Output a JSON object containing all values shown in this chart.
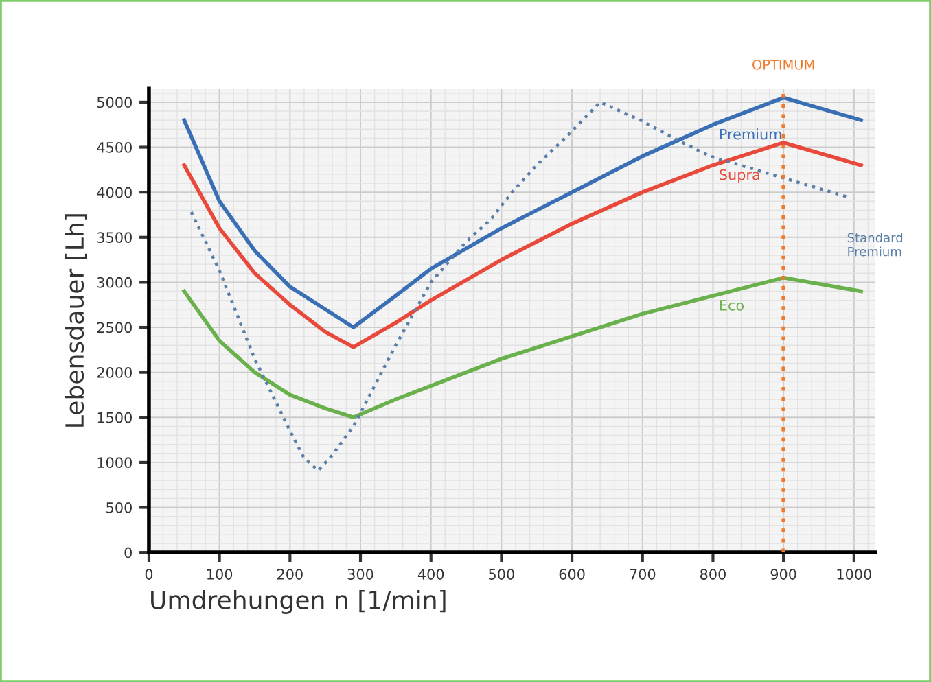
{
  "chart_data": {
    "type": "line",
    "xlabel": "Umdrehungen n [1/min]",
    "ylabel": "Lebensdauer [Lh]",
    "xlim": [
      0,
      1030
    ],
    "ylim": [
      0,
      5150
    ],
    "xticks": [
      0,
      100,
      200,
      300,
      400,
      500,
      600,
      700,
      800,
      900,
      1000
    ],
    "yticks": [
      0,
      500,
      1000,
      1500,
      2000,
      2500,
      3000,
      3500,
      4000,
      4500,
      5000
    ],
    "grid": true,
    "line_style": "solid",
    "series": [
      {
        "name": "Premium",
        "color": "#3a6fb5",
        "x": [
          50,
          100,
          150,
          200,
          250,
          290,
          350,
          400,
          500,
          600,
          700,
          800,
          900,
          1010
        ],
        "values": [
          4800,
          3900,
          3350,
          2950,
          2700,
          2500,
          2850,
          3150,
          3600,
          4000,
          4400,
          4750,
          5050,
          4800
        ]
      },
      {
        "name": "Supra",
        "color": "#e8493a",
        "x": [
          50,
          100,
          150,
          200,
          250,
          290,
          350,
          400,
          500,
          600,
          700,
          800,
          900,
          1010
        ],
        "values": [
          4300,
          3600,
          3100,
          2750,
          2450,
          2280,
          2550,
          2800,
          3250,
          3650,
          4000,
          4300,
          4550,
          4300
        ]
      },
      {
        "name": "Eco",
        "color": "#6ab04c",
        "x": [
          50,
          100,
          150,
          200,
          250,
          290,
          350,
          400,
          500,
          600,
          700,
          800,
          900,
          1010
        ],
        "values": [
          2900,
          2350,
          2000,
          1750,
          1600,
          1500,
          1700,
          1850,
          2150,
          2400,
          2650,
          2850,
          3050,
          2900
        ]
      },
      {
        "name": "Standard\nPremium",
        "color": "#5a7fa8",
        "line_style": "dotted",
        "x": [
          60,
          100,
          150,
          200,
          220,
          240,
          260,
          290,
          320,
          350,
          400,
          450,
          485,
          515,
          550,
          590,
          640,
          697,
          757,
          796,
          925,
          990
        ],
        "values": [
          3780,
          3130,
          2150,
          1350,
          1050,
          910,
          1080,
          1400,
          1850,
          2300,
          3000,
          3450,
          3700,
          4000,
          4300,
          4600,
          5000,
          4800,
          4550,
          4400,
          4100,
          3950
        ]
      }
    ],
    "ref_lines": [
      {
        "axis": "x",
        "value": 900,
        "label": "OPTIMUM",
        "color": "#f07a2a",
        "line_style": "dotted"
      }
    ]
  }
}
